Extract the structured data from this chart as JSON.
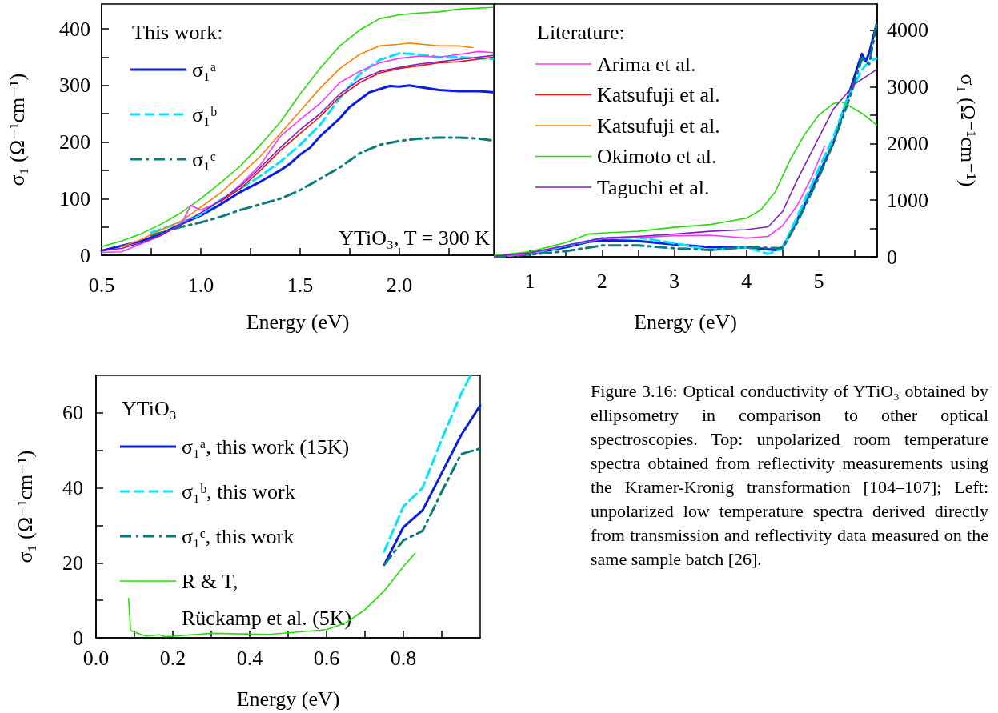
{
  "chart_data": [
    {
      "type": "line",
      "xlabel": "Energy (eV)",
      "ylabel": "σ₁ (Ω⁻¹cm⁻¹)",
      "legend": "top left",
      "legend_title": "This work:",
      "annotations": [
        "YTiO₃, T = 300 K"
      ],
      "xlim": [
        0.5,
        2.476
      ],
      "xticks": [
        0.5,
        {
          "value": 0.75,
          "label": null
        },
        {
          "value": 1,
          "label": "1.0"
        },
        {
          "value": 1.25,
          "label": null
        },
        1.5,
        {
          "value": 1.75,
          "label": null
        },
        {
          "value": 2,
          "label": "2.0"
        },
        {
          "value": 2.25,
          "label": null
        }
      ],
      "ylim": [
        0,
        444
      ],
      "yticks": [
        0,
        {
          "value": 50,
          "label": null
        },
        100,
        {
          "value": 150,
          "label": null
        },
        200,
        {
          "value": 250,
          "label": null
        },
        300,
        {
          "value": 350,
          "label": null
        },
        400
      ],
      "series": [
        {
          "color": "#22e000",
          "x": [
            0.5,
            0.6,
            0.7,
            0.8,
            0.9,
            1.0,
            1.1,
            1.2,
            1.3,
            1.4,
            1.5,
            1.6,
            1.7,
            1.8,
            1.9,
            2.0,
            2.1,
            2.2,
            2.3,
            2.47
          ],
          "values": [
            15,
            25,
            38,
            55,
            75,
            100,
            128,
            158,
            195,
            235,
            285,
            330,
            370,
            398,
            418,
            425,
            428,
            430,
            435,
            438
          ]
        },
        {
          "color": "#ff8000",
          "x": [
            0.6,
            0.7,
            0.8,
            0.9,
            1.0,
            1.1,
            1.2,
            1.3,
            1.4,
            1.5,
            1.6,
            1.7,
            1.8,
            1.9,
            2.0,
            2.05,
            2.2,
            2.3,
            2.37
          ],
          "values": [
            15,
            28,
            45,
            60,
            85,
            110,
            142,
            175,
            215,
            255,
            295,
            330,
            355,
            370,
            373,
            375,
            370,
            370,
            367
          ]
        },
        {
          "color": "#ff33ff",
          "x": [
            0.5,
            0.6,
            0.7,
            0.8,
            0.9,
            0.95,
            1.0,
            1.1,
            1.2,
            1.3,
            1.4,
            1.5,
            1.6,
            1.7,
            1.8,
            1.9,
            2.0,
            2.1,
            2.2,
            2.3,
            2.4,
            2.47
          ],
          "values": [
            5,
            6,
            20,
            35,
            55,
            88,
            80,
            95,
            125,
            160,
            210,
            240,
            268,
            305,
            325,
            340,
            348,
            352,
            350,
            355,
            360,
            358
          ]
        },
        {
          "color": "#ee1111",
          "x": [
            1.1,
            1.2,
            1.3,
            1.4,
            1.5,
            1.6,
            1.7,
            1.8,
            1.9,
            2.0,
            2.1,
            2.2,
            2.3,
            2.47
          ],
          "values": [
            95,
            118,
            150,
            185,
            215,
            245,
            280,
            305,
            322,
            330,
            335,
            340,
            342,
            350
          ]
        },
        {
          "color": "#8020c0",
          "x": [
            0.5,
            0.6,
            0.7,
            0.8,
            0.9,
            1.0,
            1.1,
            1.2,
            1.3,
            1.4,
            1.5,
            1.6,
            1.7,
            1.8,
            1.9,
            2.0,
            2.1,
            2.2,
            2.3,
            2.47
          ],
          "values": [
            8,
            12,
            22,
            35,
            55,
            75,
            97,
            122,
            155,
            190,
            222,
            250,
            285,
            310,
            325,
            332,
            338,
            342,
            346,
            353
          ]
        },
        {
          "name": "σ₁ᵃ",
          "color": "#0a1ee6",
          "line_style": "solid",
          "x": [
            0.5,
            0.7,
            0.8,
            0.9,
            1.0,
            1.1,
            1.2,
            1.3,
            1.4,
            1.45,
            1.5,
            1.55,
            1.6,
            1.7,
            1.75,
            1.85,
            1.95,
            2.0,
            2.05,
            2.2,
            2.3,
            2.4,
            2.47
          ],
          "values": [
            8,
            25,
            38,
            55,
            70,
            90,
            112,
            130,
            150,
            162,
            178,
            190,
            210,
            242,
            262,
            288,
            299,
            298,
            300,
            292,
            290,
            290,
            288
          ]
        },
        {
          "name": "σ₁ᵇ",
          "color": "#00e5ff",
          "line_style": "dashed",
          "x": [
            0.75,
            0.85,
            0.9,
            1.0,
            1.1,
            1.2,
            1.3,
            1.4,
            1.5,
            1.6,
            1.7,
            1.8,
            1.9,
            2.0,
            2.1,
            2.2,
            2.3,
            2.47
          ],
          "values": [
            40,
            52,
            58,
            72,
            98,
            118,
            140,
            165,
            195,
            230,
            278,
            320,
            345,
            357,
            355,
            350,
            350,
            347
          ]
        },
        {
          "name": "σ₁ᶜ",
          "color": "#0a7a7a",
          "line_style": "dashdot",
          "x": [
            0.75,
            0.9,
            1.0,
            1.1,
            1.2,
            1.3,
            1.4,
            1.5,
            1.6,
            1.7,
            1.8,
            1.9,
            2.0,
            2.1,
            2.2,
            2.3,
            2.4,
            2.47
          ],
          "values": [
            35,
            50,
            58,
            68,
            80,
            90,
            100,
            115,
            135,
            155,
            180,
            195,
            202,
            206,
            208,
            208,
            206,
            203
          ]
        }
      ]
    },
    {
      "type": "line",
      "xlabel": "Energy (eV)",
      "ylabel": "σ₁ (Ω⁻¹cm⁻¹)",
      "legend": "top left",
      "legend_title": "Literature:",
      "xlim": [
        0.5,
        5.81
      ],
      "xticks": [
        1,
        {
          "value": 1.5,
          "label": null
        },
        2,
        {
          "value": 2.5,
          "label": null
        },
        3,
        {
          "value": 3.5,
          "label": null
        },
        4,
        {
          "value": 4.5,
          "label": null
        },
        5,
        {
          "value": 5.5,
          "label": null
        }
      ],
      "ylim": [
        0,
        4460
      ],
      "yticks": [
        0,
        {
          "value": 500,
          "label": null
        },
        1000,
        {
          "value": 1500,
          "label": null
        },
        2000,
        {
          "value": 2500,
          "label": null
        },
        3000,
        {
          "value": 3500,
          "label": null
        },
        4000
      ],
      "series": [
        {
          "name": "Arima et al.",
          "color": "#ff33ff",
          "x": [
            0.7,
            1,
            1.5,
            2,
            2.5,
            3,
            3.5,
            4,
            4.3,
            4.5,
            4.7,
            4.9,
            5.08
          ],
          "values": [
            10,
            60,
            200,
            320,
            340,
            370,
            380,
            330,
            360,
            550,
            900,
            1400,
            1950
          ]
        },
        {
          "name": "Katsufuji et al.",
          "color": "#ee1111"
        },
        {
          "name": "Katsufuji et al.",
          "color": "#ff8000"
        },
        {
          "name": "Okimoto et al.",
          "color": "#22e000",
          "x": [
            0.5,
            1,
            1.5,
            1.8,
            2,
            2.5,
            3,
            3.5,
            4,
            4.2,
            4.4,
            4.6,
            4.8,
            5.0,
            5.2,
            5.3,
            5.4,
            5.6,
            5.8
          ],
          "values": [
            20,
            90,
            250,
            400,
            420,
            450,
            520,
            570,
            680,
            830,
            1150,
            1700,
            2150,
            2500,
            2700,
            2740,
            2680,
            2530,
            2330
          ]
        },
        {
          "name": "Taguchi et al.",
          "color": "#8020c0",
          "x": [
            0.5,
            1,
            1.5,
            2,
            2.5,
            3,
            3.5,
            4,
            4.3,
            4.5,
            4.7,
            5.0,
            5.2,
            5.5,
            5.8
          ],
          "values": [
            10,
            70,
            200,
            330,
            360,
            400,
            450,
            480,
            530,
            800,
            1350,
            2100,
            2600,
            3050,
            3300
          ]
        },
        {
          "color": "#0a1ee6",
          "line_style": "solid",
          "x": [
            0.5,
            1,
            1.5,
            1.8,
            2,
            2.5,
            3,
            3.5,
            4,
            4.4,
            4.5,
            4.6,
            4.8,
            5.0,
            5.2,
            5.4,
            5.55,
            5.6,
            5.65,
            5.7,
            5.8
          ],
          "values": [
            10,
            60,
            170,
            260,
            290,
            280,
            220,
            170,
            170,
            120,
            170,
            400,
            900,
            1450,
            2000,
            2800,
            3400,
            3580,
            3450,
            3600,
            4100
          ]
        },
        {
          "color": "#00e5ff",
          "line_style": "dashed",
          "x": [
            0.5,
            1,
            2,
            2.5,
            3,
            3.5,
            4,
            4.3,
            4.5,
            4.7,
            5.0,
            5.2,
            5.4,
            5.6,
            5.7,
            5.8
          ],
          "values": [
            0,
            60,
            330,
            340,
            240,
            120,
            170,
            50,
            150,
            700,
            1550,
            2100,
            2800,
            3300,
            3450,
            3500
          ]
        },
        {
          "color": "#0a7a7a",
          "line_style": "dashdot",
          "x": [
            0.5,
            1,
            1.5,
            2,
            2.5,
            3,
            3.5,
            4,
            4.5,
            4.7,
            5.0,
            5.2,
            5.4,
            5.6,
            5.7,
            5.8
          ],
          "values": [
            0,
            40,
            100,
            200,
            200,
            150,
            120,
            170,
            150,
            600,
            1400,
            2000,
            2700,
            3500,
            3400,
            4100
          ]
        }
      ]
    },
    {
      "type": "line",
      "xlabel": "Energy (eV)",
      "ylabel": "σ₁ (Ω⁻¹cm⁻¹)",
      "legend": "left",
      "legend_title": "YTiO₃",
      "annotations": [
        "Figure 3.16: Optical conductivity of YTiO₃ obtained by ellipsometry in comparison to other optical spectroscopies. Top: unpolarized room temperature spectra obtained from reflectivity measurements using the Kramer-Kronig transformation [104–107]; Left: unpolarized low temperature spectra derived directly from transmission and reflectivity data measured on the same sample batch [26]."
      ],
      "xlim": [
        0,
        1
      ],
      "xticks": [
        {
          "value": 0,
          "label": "0.0"
        },
        {
          "value": 0.1,
          "label": null
        },
        0.2,
        {
          "value": 0.3,
          "label": null
        },
        0.4,
        {
          "value": 0.5,
          "label": null
        },
        0.6,
        {
          "value": 0.7,
          "label": null
        },
        0.8,
        {
          "value": 0.9,
          "label": null
        }
      ],
      "ylim": [
        0,
        70
      ],
      "yticks": [
        0,
        {
          "value": 10,
          "label": null
        },
        20,
        {
          "value": 30,
          "label": null
        },
        40,
        {
          "value": 50,
          "label": null
        },
        60
      ],
      "series": [
        {
          "name": "σ₁ᵃ, this work (15K)",
          "color": "#0a1ee6",
          "line_style": "solid",
          "x": [
            0.75,
            0.8,
            0.85,
            0.9,
            0.95,
            1.0
          ],
          "values": [
            19.5,
            29.5,
            34,
            44,
            54,
            62
          ]
        },
        {
          "name": "σ₁ᵇ, this work",
          "color": "#00e5ff",
          "line_style": "dashed",
          "x": [
            0.75,
            0.8,
            0.85,
            0.9,
            0.95,
            0.975
          ],
          "values": [
            23,
            35,
            40,
            53,
            65,
            70
          ]
        },
        {
          "name": "σ₁ᶜ, this work",
          "color": "#0a7a7a",
          "line_style": "dashdot",
          "x": [
            0.75,
            0.8,
            0.85,
            0.9,
            0.95,
            1.0
          ],
          "values": [
            19.5,
            26,
            28.5,
            39,
            49,
            50.5
          ]
        },
        {
          "name": "R & T,\nRückamp et al. (5K)",
          "color": "#22e000",
          "x": [
            0.085,
            0.09,
            0.1,
            0.13,
            0.165,
            0.18,
            0.3,
            0.45,
            0.6,
            0.65,
            0.7,
            0.75,
            0.8,
            0.83
          ],
          "values": [
            10.5,
            2,
            1.5,
            0.5,
            0.8,
            0.3,
            1.2,
            0.9,
            2.2,
            4,
            7.5,
            12.5,
            19,
            22.5
          ]
        }
      ]
    }
  ]
}
